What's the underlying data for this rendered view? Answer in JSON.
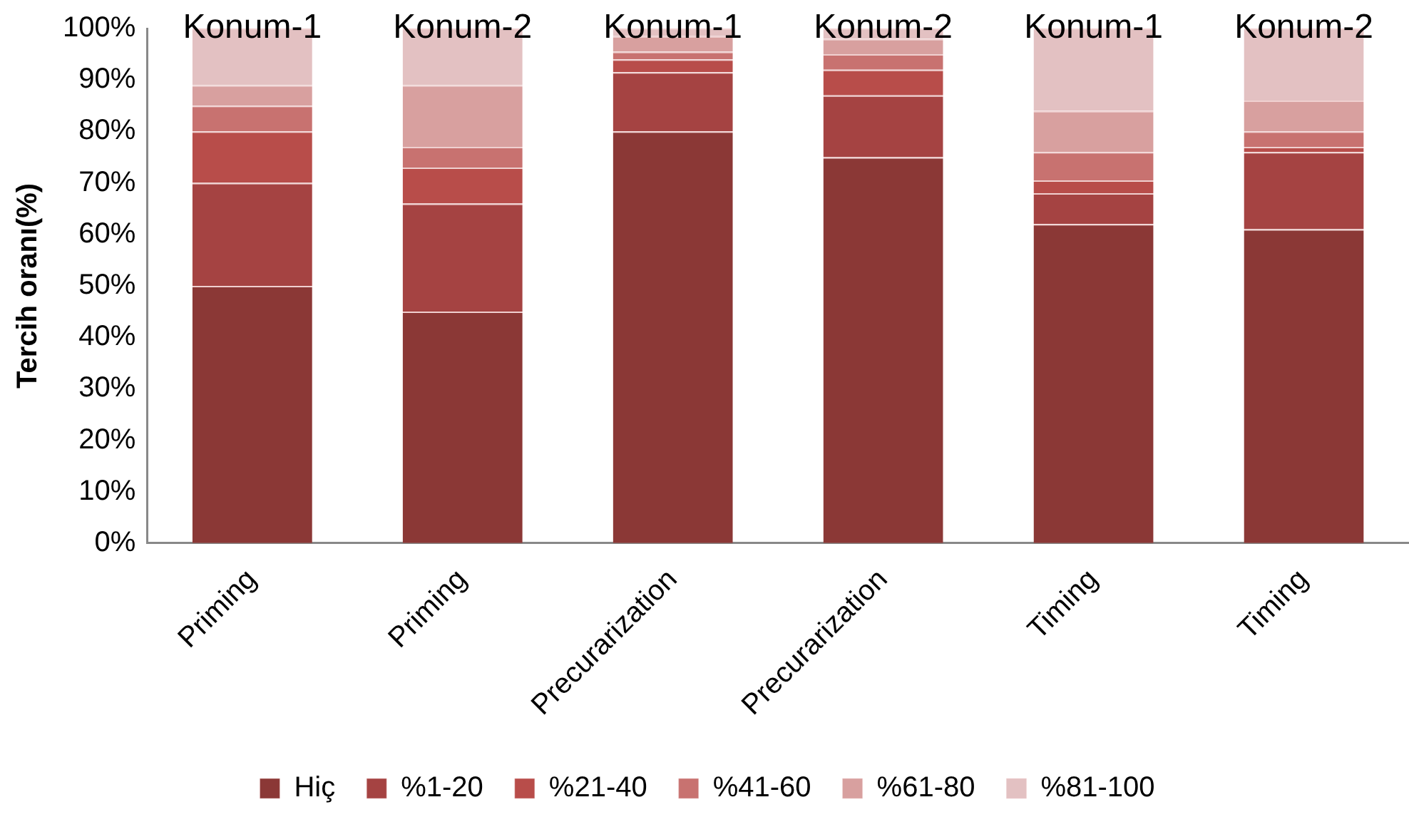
{
  "chart_data": {
    "type": "bar",
    "stacked": true,
    "ylabel": "Tercih oranı(%)",
    "categories": [
      "Priming",
      "Priming",
      "Precurarization",
      "Precurarization",
      "Timing",
      "Timing"
    ],
    "series": [
      {
        "name": "Hiç",
        "color": "#8b3836",
        "values": [
          50,
          45,
          80,
          75,
          62,
          61
        ]
      },
      {
        "name": "%1-20",
        "color": "#a54342",
        "values": [
          20,
          21,
          11.5,
          12,
          6,
          15
        ]
      },
      {
        "name": "%21-40",
        "color": "#b84d4a",
        "values": [
          10,
          7,
          2.5,
          5,
          2.5,
          1
        ]
      },
      {
        "name": "%41-60",
        "color": "#c87270",
        "values": [
          5,
          4,
          1.5,
          3,
          5.5,
          3
        ]
      },
      {
        "name": "%61-80",
        "color": "#d8a09f",
        "values": [
          4,
          12,
          3,
          3,
          8,
          6
        ]
      },
      {
        "name": "%81-100",
        "color": "#e3c1c2",
        "values": [
          11,
          11,
          1.5,
          2,
          16,
          14
        ]
      }
    ],
    "ylim": [
      0,
      100
    ],
    "yticks": [
      {
        "value": 0,
        "label": "0%"
      },
      {
        "value": 10,
        "label": "10%"
      },
      {
        "value": 20,
        "label": "20%"
      },
      {
        "value": 30,
        "label": "30%"
      },
      {
        "value": 40,
        "label": "40%"
      },
      {
        "value": 50,
        "label": "50%"
      },
      {
        "value": 60,
        "label": "60%"
      },
      {
        "value": 70,
        "label": "70%"
      },
      {
        "value": 80,
        "label": "80%"
      },
      {
        "value": 90,
        "label": "90%"
      },
      {
        "value": 100,
        "label": "100%"
      }
    ],
    "annotations": [
      "Konum-1",
      "Konum-2",
      "Konum-1",
      "Konum-2",
      "Konum-1",
      "Konum-2"
    ],
    "grid": false,
    "legend": "bottom"
  }
}
